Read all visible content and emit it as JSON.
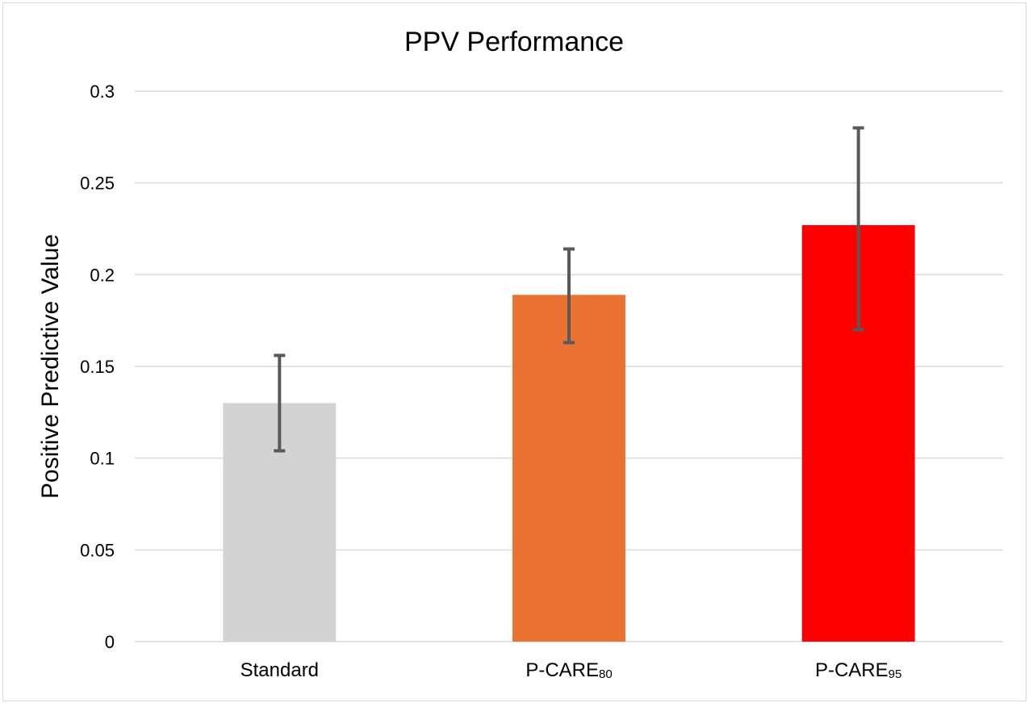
{
  "chart_data": {
    "type": "bar",
    "title": "PPV Performance",
    "xlabel": "",
    "ylabel": "Positive Predictive Value",
    "ylim": [
      0,
      0.3
    ],
    "yticks": [
      "0",
      "0.05",
      "0.1",
      "0.15",
      "0.2",
      "0.25",
      "0.3"
    ],
    "grid": true,
    "legend": "none",
    "categories": [
      {
        "main": "Standard",
        "sub": ""
      },
      {
        "main": "P-CARE",
        "sub": "80"
      },
      {
        "main": "P-CARE",
        "sub": "95"
      }
    ],
    "values": [
      0.13,
      0.189,
      0.227
    ],
    "error_low": [
      0.104,
      0.163,
      0.17
    ],
    "error_high": [
      0.156,
      0.214,
      0.28
    ],
    "colors": [
      "#d3d3d3",
      "#e97132",
      "#ff0000"
    ],
    "error_bar_color": "#595959",
    "grid_color": "#d9d9d9"
  }
}
